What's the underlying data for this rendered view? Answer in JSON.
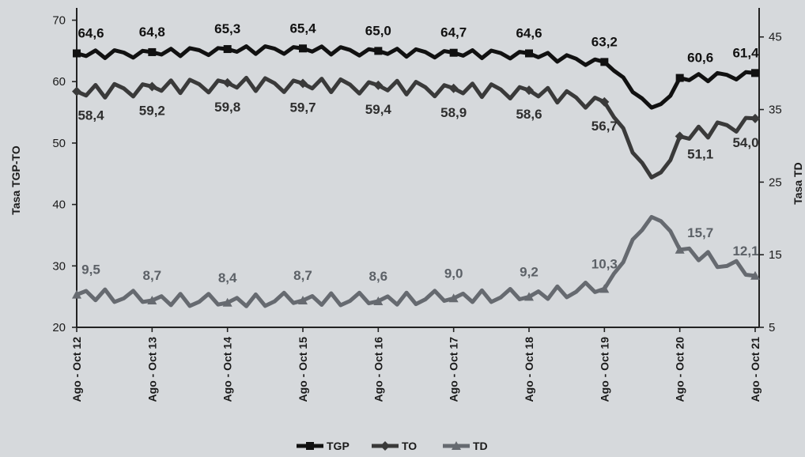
{
  "chart_data": {
    "type": "line",
    "title": "",
    "xlabel": "",
    "ylabel_left": "Tasa TGP-TO",
    "ylabel_right": "Tasa TD",
    "ylim_left": [
      20,
      72
    ],
    "ylim_right": [
      5,
      49
    ],
    "yticks_left": [
      "20",
      "30",
      "40",
      "50",
      "60",
      "70"
    ],
    "yticks_right": [
      "5",
      "15",
      "25",
      "35",
      "45"
    ],
    "categories": [
      "Ago - Oct 12",
      "Ago - Oct 13",
      "Ago - Oct 14",
      "Ago - Oct 15",
      "Ago - Oct 16",
      "Ago - Oct 17",
      "Ago - Oct 18",
      "Ago - Oct 19",
      "Ago - Oct 20",
      "Ago - Oct 21"
    ],
    "grid": false,
    "legend_position": "bottom-center",
    "series": [
      {
        "name": "TGP",
        "axis": "left",
        "color": "#111111",
        "marker": "square",
        "labels": [
          "64,6",
          "64,8",
          "65,3",
          "65,4",
          "65,0",
          "64,7",
          "64,6",
          "63,2",
          "60,6",
          "61,4"
        ],
        "values": [
          64.6,
          64.8,
          65.3,
          65.4,
          65.0,
          64.7,
          64.6,
          63.2,
          60.6,
          61.4
        ]
      },
      {
        "name": "TO",
        "axis": "left",
        "color": "#3a3a3a",
        "marker": "diamond",
        "labels": [
          "58,4",
          "59,2",
          "59,8",
          "59,7",
          "59,4",
          "58,9",
          "58,6",
          "56,7",
          "51,1",
          "54,0"
        ],
        "values": [
          58.4,
          59.2,
          59.8,
          59.7,
          59.4,
          58.9,
          58.6,
          56.7,
          51.1,
          54.0
        ]
      },
      {
        "name": "TD",
        "axis": "right",
        "color": "#666a70",
        "marker": "triangle",
        "labels": [
          "9,5",
          "8,7",
          "8,4",
          "8,7",
          "8,6",
          "9,0",
          "9,2",
          "10,3",
          "15,7",
          "12,1"
        ],
        "values": [
          9.5,
          8.7,
          8.4,
          8.7,
          8.6,
          9.0,
          9.2,
          10.3,
          15.7,
          12.1
        ]
      }
    ]
  }
}
